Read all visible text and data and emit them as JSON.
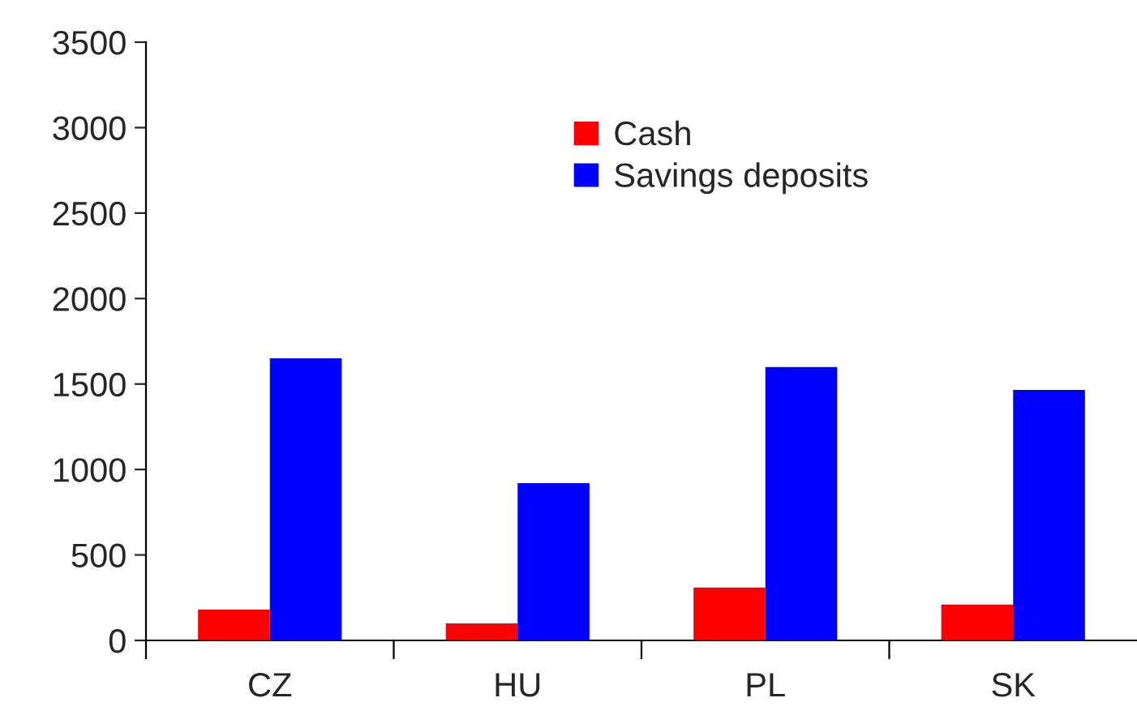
{
  "chart_data": {
    "type": "bar",
    "categories": [
      "CZ",
      "HU",
      "PL",
      "SK"
    ],
    "series": [
      {
        "name": "Cash",
        "color": "#ff0000",
        "values": [
          180,
          100,
          310,
          210
        ]
      },
      {
        "name": "Savings deposits",
        "color": "#0000ff",
        "values": [
          1650,
          920,
          1600,
          1465
        ]
      }
    ],
    "ylim": [
      0,
      3500
    ],
    "yticks": [
      0,
      500,
      1000,
      1500,
      2000,
      2500,
      3000,
      3500
    ],
    "grid": false,
    "legend": "top"
  }
}
